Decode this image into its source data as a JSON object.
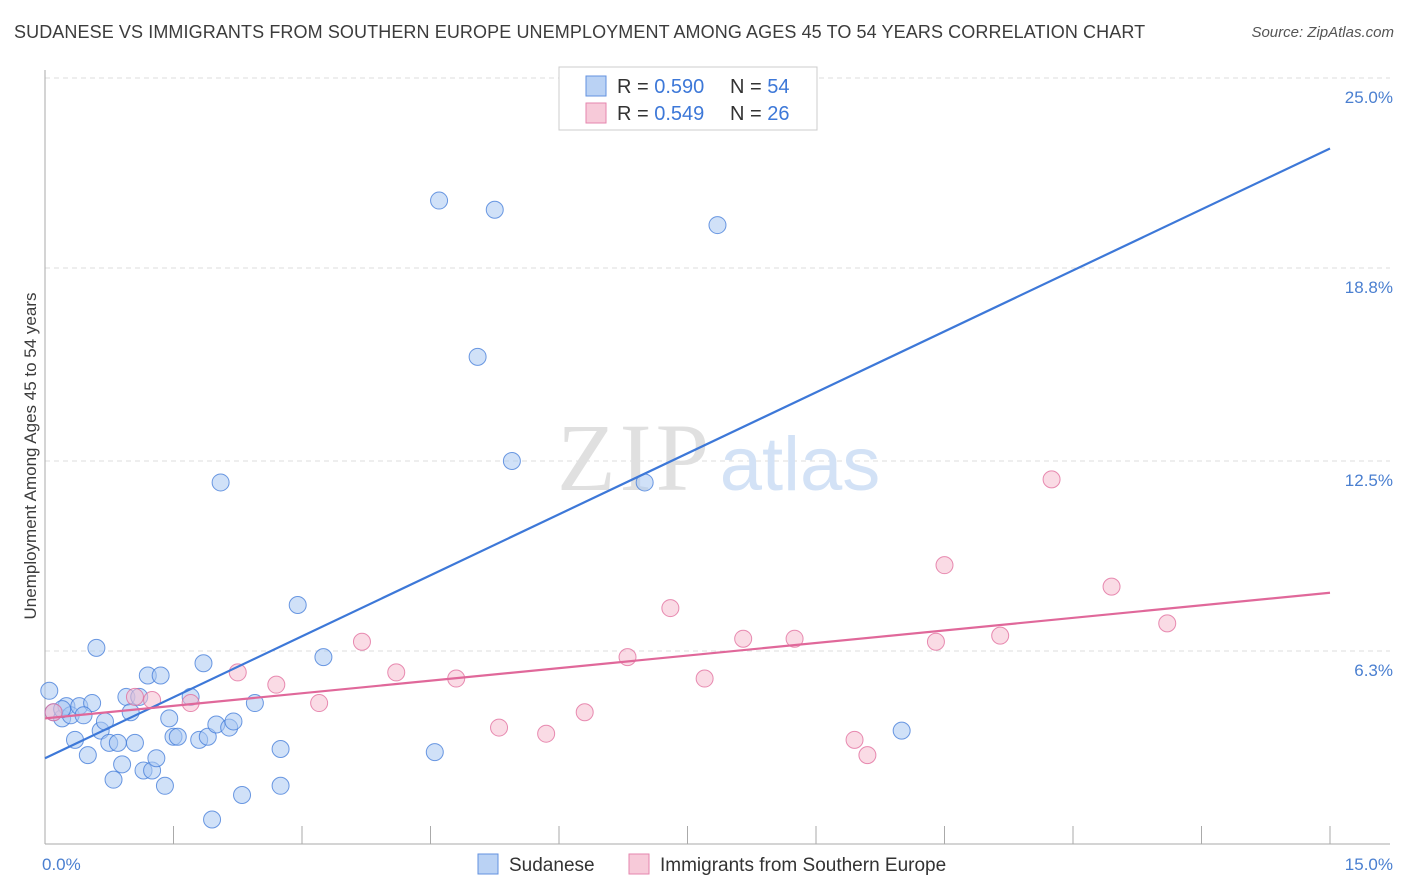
{
  "title": "SUDANESE VS IMMIGRANTS FROM SOUTHERN EUROPE UNEMPLOYMENT AMONG AGES 45 TO 54 YEARS CORRELATION CHART",
  "source": "Source: ZipAtlas.com",
  "watermark": {
    "zip": "ZIP",
    "atlas": "atlas"
  },
  "legend_box": {
    "rows": [
      {
        "r_label": "R = ",
        "r_value": "0.590",
        "n_label": "N = ",
        "n_value": "54"
      },
      {
        "r_label": "R = ",
        "r_value": "0.549",
        "n_label": "N = ",
        "n_value": "26"
      }
    ]
  },
  "bottom_legend": [
    "Sudanese",
    "Immigrants from Southern Europe"
  ],
  "chart_data": {
    "type": "scatter",
    "title": "SUDANESE VS IMMIGRANTS FROM SOUTHERN EUROPE UNEMPLOYMENT AMONG AGES 45 TO 54 YEARS CORRELATION CHART",
    "xlabel": "",
    "ylabel": "Unemployment Among Ages 45 to 54 years",
    "xlim": [
      0,
      15
    ],
    "ylim": [
      0,
      25
    ],
    "x_tick_labels": [
      "0.0%",
      "15.0%"
    ],
    "y_ticks": [
      6.3,
      12.5,
      18.8,
      25.0
    ],
    "y_tick_labels": [
      "6.3%",
      "12.5%",
      "18.8%",
      "25.0%"
    ],
    "grid": true,
    "legend_position": "top-center",
    "colors": {
      "sudanese": "#3d78d8",
      "southern_europe": "#e0689a",
      "sudanese_fill": "#aac8f2",
      "southern_europe_fill": "#f6bdd0"
    },
    "series": [
      {
        "name": "Sudanese",
        "r": 0.59,
        "n": 54,
        "trend": [
          [
            0,
            2.8
          ],
          [
            15,
            22.7
          ]
        ],
        "points": [
          [
            0.05,
            5.0
          ],
          [
            0.1,
            4.3
          ],
          [
            0.2,
            4.1
          ],
          [
            0.25,
            4.5
          ],
          [
            0.3,
            4.2
          ],
          [
            0.35,
            3.4
          ],
          [
            0.4,
            4.5
          ],
          [
            0.5,
            2.9
          ],
          [
            0.55,
            4.6
          ],
          [
            0.6,
            6.4
          ],
          [
            0.65,
            3.7
          ],
          [
            0.7,
            4.0
          ],
          [
            0.75,
            3.3
          ],
          [
            0.8,
            2.1
          ],
          [
            0.85,
            3.3
          ],
          [
            0.9,
            2.6
          ],
          [
            0.95,
            4.8
          ],
          [
            1.0,
            4.3
          ],
          [
            1.05,
            3.3
          ],
          [
            1.1,
            4.8
          ],
          [
            1.15,
            2.4
          ],
          [
            1.2,
            5.5
          ],
          [
            1.25,
            2.4
          ],
          [
            1.3,
            2.8
          ],
          [
            1.35,
            5.5
          ],
          [
            1.4,
            1.9
          ],
          [
            1.45,
            4.1
          ],
          [
            1.5,
            3.5
          ],
          [
            1.55,
            3.5
          ],
          [
            1.7,
            4.8
          ],
          [
            1.8,
            3.4
          ],
          [
            1.85,
            5.9
          ],
          [
            1.9,
            3.5
          ],
          [
            1.95,
            0.8
          ],
          [
            2.0,
            3.9
          ],
          [
            2.05,
            11.8
          ],
          [
            2.15,
            3.8
          ],
          [
            2.2,
            4.0
          ],
          [
            2.3,
            1.6
          ],
          [
            2.45,
            4.6
          ],
          [
            2.75,
            3.1
          ],
          [
            2.75,
            1.9
          ],
          [
            2.95,
            7.8
          ],
          [
            3.25,
            6.1
          ],
          [
            4.55,
            3.0
          ],
          [
            4.6,
            21.0
          ],
          [
            5.05,
            15.9
          ],
          [
            5.25,
            20.7
          ],
          [
            5.45,
            12.5
          ],
          [
            7.0,
            11.8
          ],
          [
            7.85,
            20.2
          ],
          [
            10.0,
            3.7
          ],
          [
            0.2,
            4.4
          ],
          [
            0.45,
            4.2
          ]
        ]
      },
      {
        "name": "Immigrants from Southern Europe",
        "r": 0.549,
        "n": 26,
        "trend": [
          [
            0,
            4.1
          ],
          [
            15,
            8.2
          ]
        ],
        "points": [
          [
            0.1,
            4.3
          ],
          [
            1.05,
            4.8
          ],
          [
            1.25,
            4.7
          ],
          [
            1.7,
            4.6
          ],
          [
            2.25,
            5.6
          ],
          [
            2.7,
            5.2
          ],
          [
            3.2,
            4.6
          ],
          [
            3.7,
            6.6
          ],
          [
            4.1,
            5.6
          ],
          [
            4.8,
            5.4
          ],
          [
            5.3,
            3.8
          ],
          [
            5.85,
            3.6
          ],
          [
            6.3,
            4.3
          ],
          [
            6.8,
            6.1
          ],
          [
            7.3,
            7.7
          ],
          [
            7.7,
            5.4
          ],
          [
            8.15,
            6.7
          ],
          [
            8.75,
            6.7
          ],
          [
            9.45,
            3.4
          ],
          [
            9.6,
            2.9
          ],
          [
            10.4,
            6.6
          ],
          [
            10.5,
            9.1
          ],
          [
            11.15,
            6.8
          ],
          [
            11.75,
            11.9
          ],
          [
            12.45,
            8.4
          ],
          [
            13.1,
            7.2
          ]
        ]
      }
    ]
  }
}
